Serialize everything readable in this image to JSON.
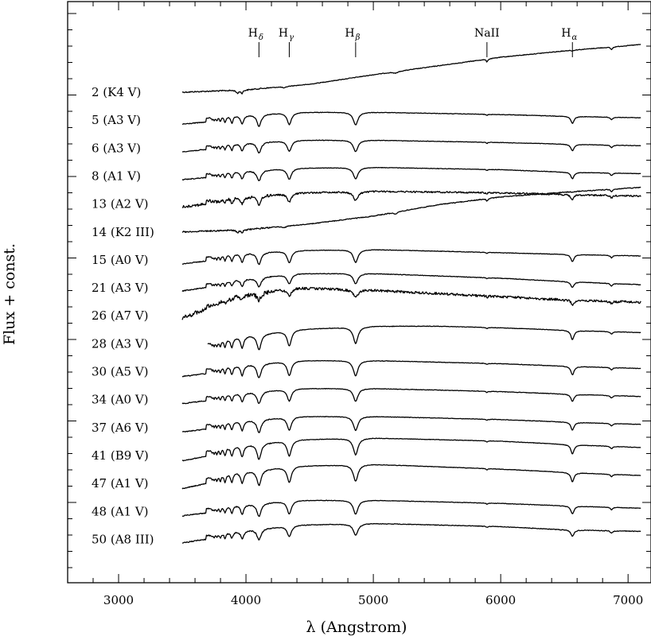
{
  "chart_data": {
    "type": "line",
    "title": "",
    "xlabel": "λ (Angstrom)",
    "ylabel": "Flux + const.",
    "xlim": [
      2600,
      7180
    ],
    "x_ticks": [
      3000,
      4000,
      5000,
      6000,
      7000
    ],
    "x_tick_labels": [
      "3000",
      "4000",
      "5000",
      "6000",
      "7000"
    ],
    "grid": false,
    "legend": "none",
    "line_marks": [
      {
        "name": "H",
        "sub": "δ",
        "wavelength": 4102
      },
      {
        "name": "H",
        "sub": "γ",
        "wavelength": 4340
      },
      {
        "name": "H",
        "sub": "β",
        "wavelength": 4861
      },
      {
        "name": "NaII",
        "sub": "",
        "wavelength": 5892
      },
      {
        "name": "H",
        "sub": "α",
        "wavelength": 6563
      }
    ],
    "series": [
      {
        "label": "2 (K4 V)",
        "kind": "K",
        "start": 3500,
        "cont": [
          [
            3500,
            0
          ],
          [
            4000,
            3
          ],
          [
            4500,
            10
          ],
          [
            5000,
            22
          ],
          [
            5500,
            33
          ],
          [
            6000,
            44
          ],
          [
            6500,
            52
          ],
          [
            7100,
            60
          ]
        ],
        "depth": 0,
        "noise": 0.8
      },
      {
        "label": "5 (A3 V)",
        "kind": "A",
        "start": 3500,
        "cont": [
          [
            3500,
            0
          ],
          [
            3900,
            6
          ],
          [
            4400,
            10
          ],
          [
            5000,
            10
          ],
          [
            6000,
            7
          ],
          [
            6500,
            5
          ],
          [
            7100,
            3
          ]
        ],
        "depth": 20,
        "noise": 0.6
      },
      {
        "label": "6 (A3 V)",
        "kind": "A",
        "start": 3500,
        "cont": [
          [
            3500,
            0
          ],
          [
            3900,
            6
          ],
          [
            4400,
            10
          ],
          [
            5000,
            10
          ],
          [
            6000,
            7
          ],
          [
            6500,
            5
          ],
          [
            7100,
            3
          ]
        ],
        "depth": 18,
        "noise": 0.6
      },
      {
        "label": "8 (A1 V)",
        "kind": "A",
        "start": 3500,
        "cont": [
          [
            3500,
            0
          ],
          [
            3900,
            6
          ],
          [
            4400,
            10
          ],
          [
            5000,
            11
          ],
          [
            6000,
            8
          ],
          [
            6500,
            5
          ],
          [
            7100,
            3
          ]
        ],
        "depth": 18,
        "noise": 0.6
      },
      {
        "label": "13 (A2 V)",
        "kind": "A",
        "start": 3500,
        "cont": [
          [
            3500,
            0
          ],
          [
            3900,
            8
          ],
          [
            4400,
            14
          ],
          [
            5000,
            16
          ],
          [
            6000,
            14
          ],
          [
            6500,
            12
          ],
          [
            7100,
            10
          ]
        ],
        "depth": 14,
        "noise": 2.0
      },
      {
        "label": "14 (K2 III)",
        "kind": "K",
        "start": 3500,
        "cont": [
          [
            3500,
            0
          ],
          [
            4000,
            3
          ],
          [
            4500,
            10
          ],
          [
            5000,
            20
          ],
          [
            5500,
            34
          ],
          [
            6000,
            44
          ],
          [
            6500,
            50
          ],
          [
            7100,
            56
          ]
        ],
        "depth": 0,
        "noise": 1.0
      },
      {
        "label": "15 (A0 V)",
        "kind": "A",
        "start": 3500,
        "cont": [
          [
            3500,
            0
          ],
          [
            3900,
            8
          ],
          [
            4400,
            12
          ],
          [
            5000,
            13
          ],
          [
            6000,
            9
          ],
          [
            6500,
            7
          ],
          [
            7100,
            5
          ]
        ],
        "depth": 20,
        "noise": 0.6
      },
      {
        "label": "21 (A3 V)",
        "kind": "A",
        "start": 3500,
        "cont": [
          [
            3500,
            0
          ],
          [
            3900,
            10
          ],
          [
            4400,
            18
          ],
          [
            5000,
            18
          ],
          [
            6000,
            12
          ],
          [
            6500,
            8
          ],
          [
            7100,
            4
          ]
        ],
        "depth": 16,
        "noise": 0.7
      },
      {
        "label": "26 (A7 V)",
        "kind": "A",
        "start": 3500,
        "cont": [
          [
            3500,
            0
          ],
          [
            3900,
            25
          ],
          [
            4400,
            35
          ],
          [
            5000,
            32
          ],
          [
            6000,
            24
          ],
          [
            6500,
            20
          ],
          [
            7100,
            17
          ]
        ],
        "depth": 12,
        "noise": 3.0
      },
      {
        "label": "28 (A3 V)",
        "kind": "A",
        "start": 3700,
        "cont": [
          [
            3700,
            0
          ],
          [
            3900,
            8
          ],
          [
            4400,
            18
          ],
          [
            5000,
            22
          ],
          [
            5500,
            22
          ],
          [
            6000,
            20
          ],
          [
            6500,
            17
          ],
          [
            7100,
            14
          ]
        ],
        "depth": 26,
        "noise": 0.6
      },
      {
        "label": "30 (A5 V)",
        "kind": "A",
        "start": 3500,
        "cont": [
          [
            3500,
            0
          ],
          [
            3900,
            8
          ],
          [
            4400,
            14
          ],
          [
            5000,
            14
          ],
          [
            6000,
            10
          ],
          [
            6500,
            7
          ],
          [
            7100,
            4
          ]
        ],
        "depth": 24,
        "noise": 0.6
      },
      {
        "label": "34 (A0 V)",
        "kind": "A",
        "start": 3500,
        "cont": [
          [
            3500,
            0
          ],
          [
            3900,
            8
          ],
          [
            4400,
            14
          ],
          [
            5000,
            14
          ],
          [
            6000,
            10
          ],
          [
            6500,
            7
          ],
          [
            7100,
            4
          ]
        ],
        "depth": 20,
        "noise": 0.6
      },
      {
        "label": "37 (A6 V)",
        "kind": "A",
        "start": 3500,
        "cont": [
          [
            3500,
            0
          ],
          [
            3900,
            8
          ],
          [
            4400,
            14
          ],
          [
            5000,
            14
          ],
          [
            6000,
            10
          ],
          [
            6500,
            7
          ],
          [
            7100,
            4
          ]
        ],
        "depth": 22,
        "noise": 0.6
      },
      {
        "label": "41 (B9 V)",
        "kind": "A",
        "start": 3500,
        "cont": [
          [
            3500,
            0
          ],
          [
            3900,
            12
          ],
          [
            4400,
            20
          ],
          [
            5000,
            22
          ],
          [
            6000,
            18
          ],
          [
            6500,
            14
          ],
          [
            7100,
            10
          ]
        ],
        "depth": 26,
        "noise": 0.6
      },
      {
        "label": "47 (A1 V)",
        "kind": "A",
        "start": 3500,
        "cont": [
          [
            3500,
            0
          ],
          [
            3900,
            14
          ],
          [
            4400,
            22
          ],
          [
            5000,
            24
          ],
          [
            6000,
            18
          ],
          [
            6500,
            14
          ],
          [
            7100,
            10
          ]
        ],
        "depth": 26,
        "noise": 0.6
      },
      {
        "label": "48 (A1 V)",
        "kind": "A",
        "start": 3500,
        "cont": [
          [
            3500,
            0
          ],
          [
            3900,
            8
          ],
          [
            4400,
            14
          ],
          [
            5000,
            14
          ],
          [
            6000,
            10
          ],
          [
            6500,
            7
          ],
          [
            7100,
            4
          ]
        ],
        "depth": 22,
        "noise": 0.6
      },
      {
        "label": "50 (A8 III)",
        "kind": "A",
        "start": 3500,
        "cont": [
          [
            3500,
            0
          ],
          [
            3900,
            10
          ],
          [
            4400,
            18
          ],
          [
            5000,
            20
          ],
          [
            6000,
            16
          ],
          [
            6500,
            12
          ],
          [
            7100,
            10
          ]
        ],
        "depth": 18,
        "noise": 0.8
      }
    ]
  }
}
